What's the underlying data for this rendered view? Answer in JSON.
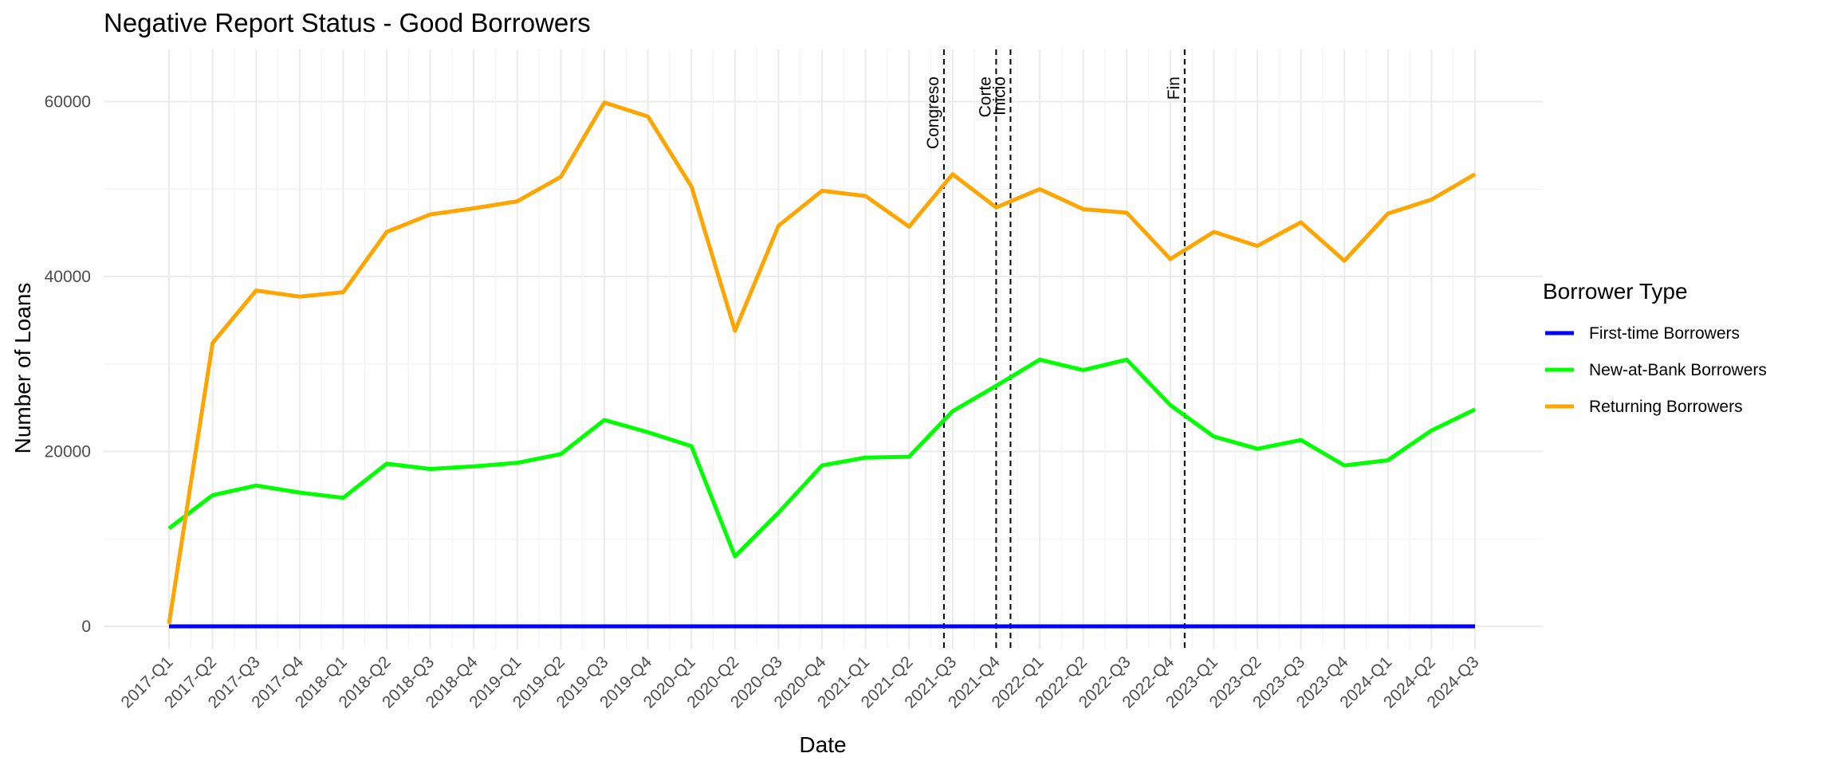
{
  "chart_data": {
    "type": "line",
    "title": "Negative Report Status - Good Borrowers",
    "xlabel": "Date",
    "ylabel": "Number of Loans",
    "categories": [
      "2017-Q1",
      "2017-Q2",
      "2017-Q3",
      "2017-Q4",
      "2018-Q1",
      "2018-Q2",
      "2018-Q3",
      "2018-Q4",
      "2019-Q1",
      "2019-Q2",
      "2019-Q3",
      "2019-Q4",
      "2020-Q1",
      "2020-Q2",
      "2020-Q3",
      "2020-Q4",
      "2021-Q1",
      "2021-Q2",
      "2021-Q3",
      "2021-Q4",
      "2022-Q1",
      "2022-Q2",
      "2022-Q3",
      "2022-Q4",
      "2023-Q1",
      "2023-Q2",
      "2023-Q3",
      "2023-Q4",
      "2024-Q1",
      "2024-Q2",
      "2024-Q3"
    ],
    "ylim": [
      -3500,
      66000
    ],
    "yticks": [
      0,
      20000,
      40000,
      60000
    ],
    "ytick_labels": [
      "0",
      "20000",
      "40000",
      "60000"
    ],
    "grid": true,
    "legend": {
      "title": "Borrower Type",
      "position": "right"
    },
    "series": [
      {
        "name": "First-time Borrowers",
        "color": "#0000FF",
        "values": [
          0,
          0,
          0,
          0,
          0,
          0,
          0,
          0,
          0,
          0,
          0,
          0,
          0,
          0,
          0,
          0,
          0,
          0,
          0,
          0,
          0,
          0,
          0,
          0,
          0,
          0,
          0,
          0,
          0,
          0,
          0
        ]
      },
      {
        "name": "New-at-Bank Borrowers",
        "color": "#00FF00",
        "values": [
          11200,
          15000,
          16100,
          15300,
          14700,
          18600,
          18000,
          18300,
          18700,
          19700,
          23600,
          22200,
          20600,
          8000,
          13000,
          18400,
          19300,
          19400,
          24600,
          27500,
          30500,
          29300,
          30500,
          25300,
          21700,
          20300,
          21300,
          18400,
          19000,
          22400,
          24800
        ]
      },
      {
        "name": "Returning Borrowers",
        "color": "#FFA500",
        "values": [
          300,
          32400,
          38400,
          37700,
          38200,
          45100,
          47100,
          47800,
          48600,
          51400,
          59900,
          58300,
          50300,
          33800,
          45800,
          49800,
          49200,
          45700,
          51700,
          47900,
          50000,
          47700,
          47300,
          42000,
          45100,
          43500,
          46200,
          41800,
          47200,
          48800,
          51700
        ]
      }
    ],
    "events": [
      {
        "label": "Congreso",
        "x": 17.8
      },
      {
        "label": "Corte",
        "x": 19.0
      },
      {
        "label": "Inicio",
        "x": 19.33
      },
      {
        "label": "Fin",
        "x": 23.33
      }
    ]
  }
}
